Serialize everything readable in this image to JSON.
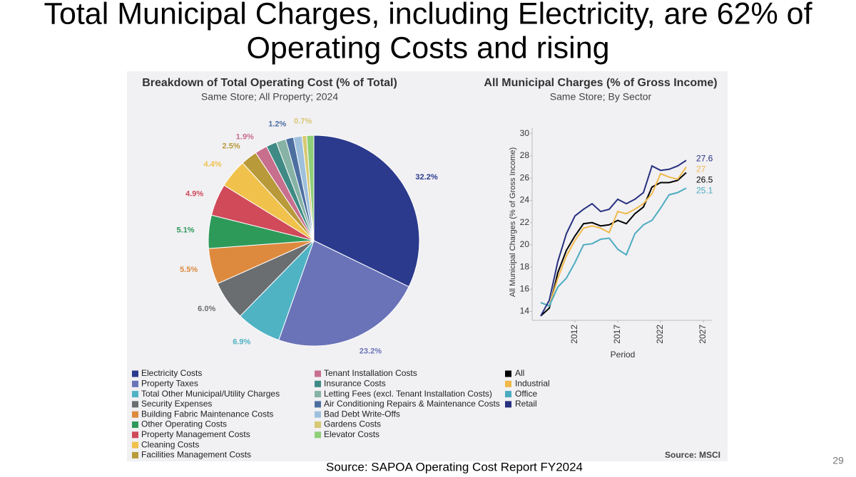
{
  "slide": {
    "title_lines": [
      "Total Municipal Charges, including Electricity, are 62% of",
      "Operating Costs and rising"
    ],
    "source": "Source:  SAPOA Operating Cost Report FY2024",
    "page_number": "29"
  },
  "chart_data": [
    {
      "type": "pie",
      "title": "Breakdown of Total Operating Cost (% of Total)",
      "subtitle": "Same Store; All Property; 2024",
      "categories": [
        "Electricity Costs",
        "Property Taxes",
        "Total Other Municipal/Utility Charges",
        "Security Expenses",
        "Building Fabric Maintenance Costs",
        "Other Operating Costs",
        "Property Management Costs",
        "Cleaning Costs",
        "Facilities Management Costs",
        "Tenant Installation Costs",
        "Insurance Costs",
        "Letting Fees (excl. Tenant Installation Costs)",
        "Air Conditioning Repairs & Maintenance Costs",
        "Bad Debt Write-Offs",
        "Gardens Costs",
        "Elevator Costs"
      ],
      "values": [
        32.2,
        23.2,
        6.9,
        6.0,
        5.5,
        5.1,
        4.9,
        4.4,
        2.5,
        1.9,
        1.6,
        1.5,
        1.2,
        1.3,
        0.7,
        1.1
      ],
      "value_labels": [
        "32.2%",
        "23.2%",
        "6.9%",
        "6.0%",
        "5.5%",
        "5.1%",
        "4.9%",
        "4.4%",
        "2.5%",
        "1.9%",
        null,
        null,
        "1.2%",
        null,
        "0.7%",
        null
      ],
      "colors": [
        "#2b3a8c",
        "#6a73b8",
        "#4fb3c4",
        "#6b6e70",
        "#dd8a3e",
        "#2e9a5a",
        "#d04a5a",
        "#f0c24b",
        "#b89a3a",
        "#c86f8e",
        "#3f8a84",
        "#86b3a6",
        "#4d6fa0",
        "#9fc0dd",
        "#d7c873",
        "#8fcf7a"
      ]
    },
    {
      "type": "line",
      "title": "All Municipal Charges (% of Gross Income)",
      "subtitle": "Same Store; By Sector",
      "x_label": "Period",
      "y_label": "All Municipal Charges (% of Gross Income)",
      "source": "Source: MSCI",
      "x": [
        2008,
        2009,
        2010,
        2011,
        2012,
        2013,
        2014,
        2015,
        2016,
        2017,
        2018,
        2019,
        2020,
        2021,
        2022,
        2023,
        2024,
        2025
      ],
      "xlim": [
        2007,
        2028
      ],
      "xticks": [
        2012,
        2017,
        2022,
        2027
      ],
      "ylim": [
        13.2,
        30.5
      ],
      "yticks": [
        14,
        16,
        18,
        20,
        22,
        24,
        26,
        28,
        30
      ],
      "series": [
        {
          "name": "All",
          "color": "#000000",
          "values": [
            13.6,
            14.3,
            17.5,
            19.5,
            20.8,
            21.9,
            22.0,
            21.7,
            21.8,
            22.2,
            21.9,
            22.8,
            23.4,
            25.2,
            25.6,
            25.6,
            25.8,
            26.5
          ]
        },
        {
          "name": "Industrial",
          "color": "#f0b94a",
          "values": [
            14.8,
            14.5,
            17.0,
            19.0,
            20.4,
            21.5,
            21.7,
            21.5,
            21.1,
            23.0,
            22.8,
            23.2,
            23.7,
            24.6,
            26.4,
            26.1,
            25.9,
            27.0
          ]
        },
        {
          "name": "Office",
          "color": "#4aacc0",
          "values": [
            14.8,
            14.5,
            16.2,
            17.0,
            18.4,
            20.0,
            20.1,
            20.5,
            20.6,
            19.6,
            19.1,
            21.0,
            21.8,
            22.2,
            23.3,
            24.5,
            24.7,
            25.1
          ]
        },
        {
          "name": "Retail",
          "color": "#27307f",
          "values": [
            13.6,
            15.0,
            18.5,
            21.0,
            22.6,
            23.2,
            23.7,
            23.0,
            23.2,
            24.1,
            23.7,
            24.1,
            24.7,
            27.1,
            26.7,
            26.8,
            27.1,
            27.6
          ]
        }
      ]
    }
  ]
}
